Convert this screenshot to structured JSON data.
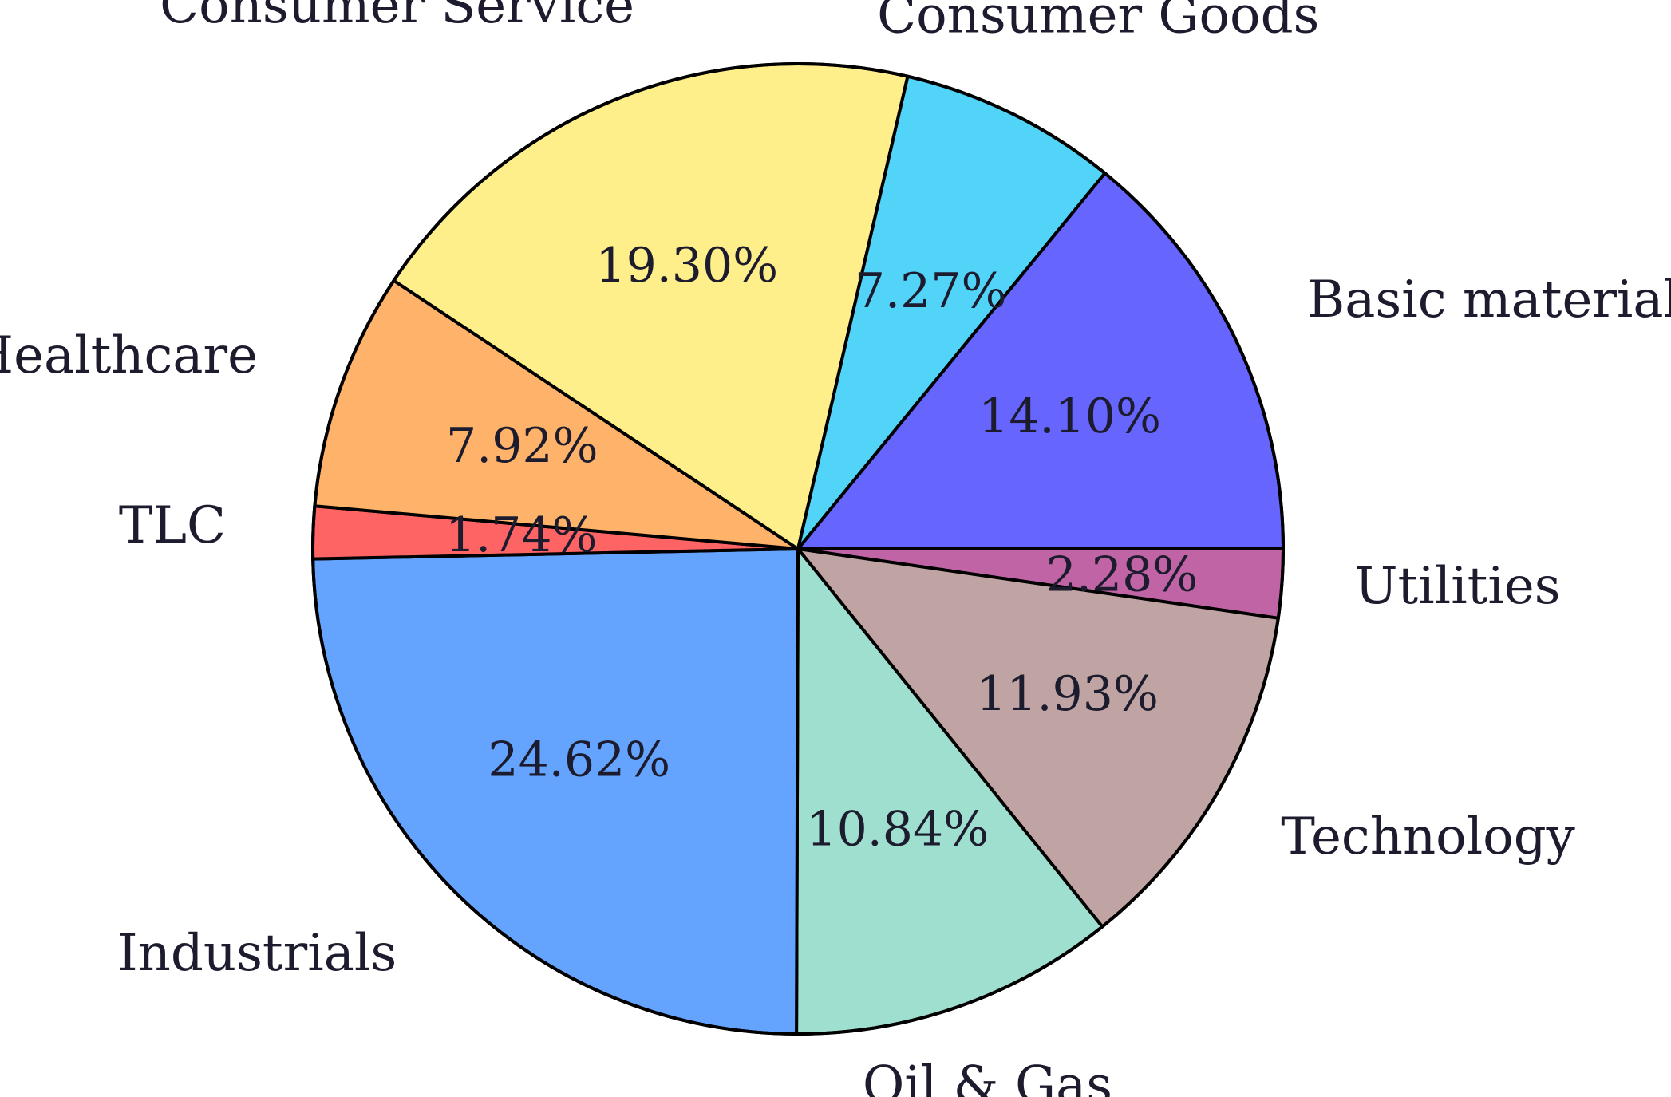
{
  "chart_data": {
    "type": "pie",
    "title": "",
    "start_angle_deg": 0,
    "direction": "clockwise-from-right",
    "slices": [
      {
        "label": "Utilities",
        "value": 2.28,
        "value_label": "2.28%",
        "color": "#c064a6"
      },
      {
        "label": "Technology",
        "value": 11.93,
        "value_label": "11.93%",
        "color": "#c0a3a3"
      },
      {
        "label": "Oil & Gas",
        "value": 10.84,
        "value_label": "10.84%",
        "color": "#9edfcf"
      },
      {
        "label": "Industrials",
        "value": 24.62,
        "value_label": "24.62%",
        "color": "#64a3fe"
      },
      {
        "label": "TLC",
        "value": 1.74,
        "value_label": "1.74%",
        "color": "#ff6464"
      },
      {
        "label": "Healthcare",
        "value": 7.92,
        "value_label": "7.92%",
        "color": "#feb26a"
      },
      {
        "label": "Consumer Service",
        "value": 19.3,
        "value_label": "19.30%",
        "color": "#ffef8b"
      },
      {
        "label": "Consumer Goods",
        "value": 7.27,
        "value_label": "7.27%",
        "color": "#52d4f9"
      },
      {
        "label": "Basic material",
        "value": 14.1,
        "value_label": "14.10%",
        "color": "#6665fe"
      }
    ]
  }
}
